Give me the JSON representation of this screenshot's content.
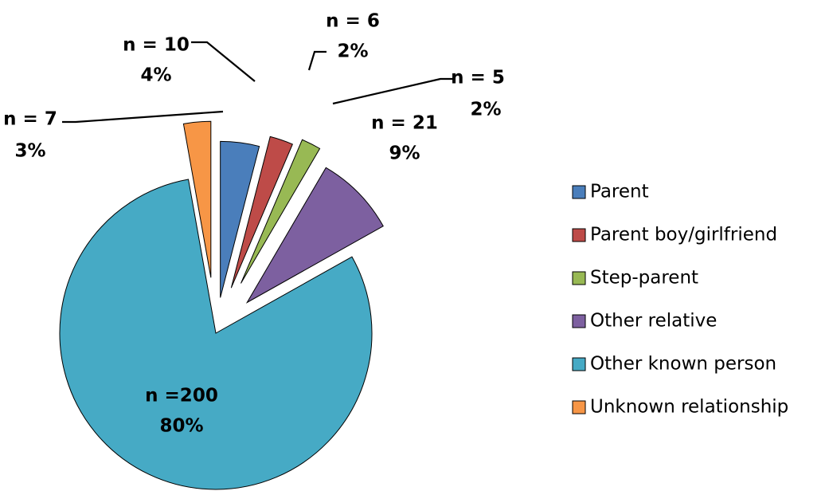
{
  "chart_data": {
    "type": "pie",
    "style": "exploded",
    "title": "",
    "slices": [
      {
        "name": "Parent",
        "n": 10,
        "n_label": "n = 10",
        "pct_label": "4%",
        "color": "#4a7ebb"
      },
      {
        "name": "Parent boy/girlfriend",
        "n": 6,
        "n_label": "n = 6",
        "pct_label": "2%",
        "color": "#be4b48"
      },
      {
        "name": "Step-parent",
        "n": 5,
        "n_label": "n = 5",
        "pct_label": "2%",
        "color": "#98b954"
      },
      {
        "name": "Other relative",
        "n": 21,
        "n_label": "n = 21",
        "pct_label": "9%",
        "color": "#7d60a0"
      },
      {
        "name": "Other known person",
        "n": 200,
        "n_label": "n =200",
        "pct_label": "80%",
        "color": "#46aac5"
      },
      {
        "name": "Unknown relationship",
        "n": 7,
        "n_label": "n = 7",
        "pct_label": "3%",
        "color": "#f79646"
      }
    ],
    "legend": {
      "placement": "right",
      "entries": [
        "Parent",
        "Parent boy/girlfriend",
        "Step-parent",
        "Other relative",
        "Other known person",
        "Unknown relationship"
      ]
    }
  }
}
